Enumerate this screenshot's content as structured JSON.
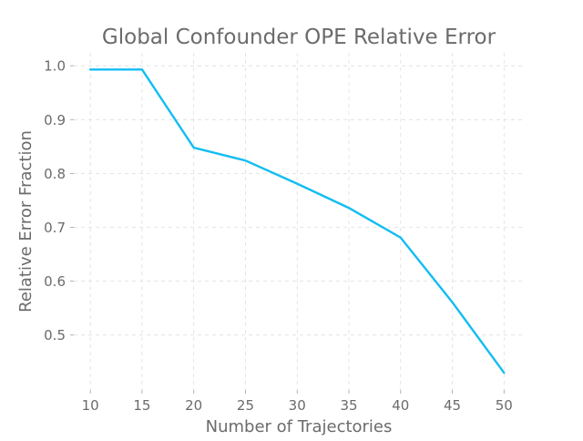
{
  "chart_data": {
    "type": "line",
    "title": "Global Confounder OPE Relative Error",
    "xlabel": "Number of Trajectories",
    "ylabel": "Relative Error Fraction",
    "x": [
      10,
      15,
      20,
      25,
      30,
      35,
      40,
      45,
      50
    ],
    "series": [
      {
        "values": [
          0.993,
          0.993,
          0.848,
          0.824,
          0.781,
          0.736,
          0.681,
          0.561,
          0.43
        ],
        "color": "#13bdf2"
      }
    ],
    "xticks": [
      10,
      15,
      20,
      25,
      30,
      35,
      40,
      45,
      50
    ],
    "xtick_labels": [
      "10",
      "15",
      "20",
      "25",
      "30",
      "35",
      "40",
      "45",
      "50"
    ],
    "yticks": [
      0.5,
      0.6,
      0.7,
      0.8,
      0.9,
      1.0
    ],
    "ytick_labels": [
      "0.5",
      "0.6",
      "0.7",
      "0.8",
      "0.9",
      "1.0"
    ],
    "xlim": [
      8.4,
      52.0
    ],
    "ylim": [
      0.398,
      1.024
    ],
    "grid": true,
    "legend": "none"
  }
}
